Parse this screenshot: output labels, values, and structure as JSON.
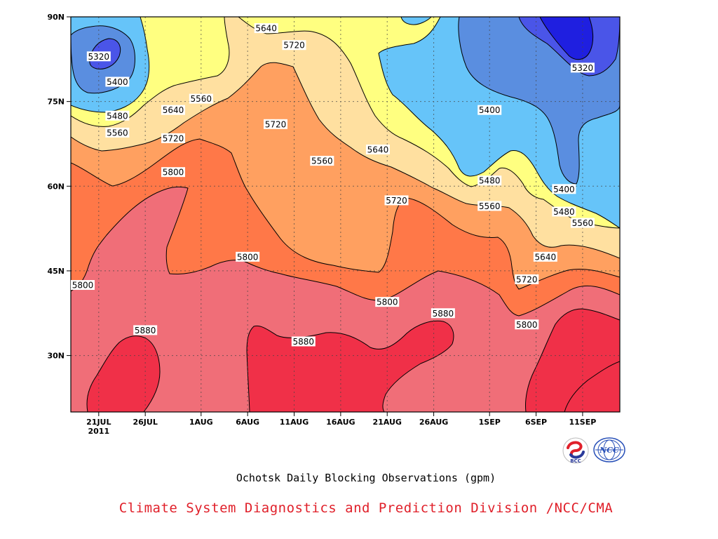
{
  "chart_data": {
    "type": "heatmap",
    "title": "Ochotsk Daily Blocking Observations (gpm)",
    "x_ticks": [
      "21JUL",
      "26JUL",
      "1AUG",
      "6AUG",
      "11AUG",
      "16AUG",
      "21AUG",
      "26AUG",
      "1SEP",
      "6SEP",
      "11SEP"
    ],
    "x_sub_label": "2011",
    "xlim": [
      "2011-07-18",
      "2011-09-15"
    ],
    "y_ticks": [
      "30N",
      "45N",
      "60N",
      "75N",
      "90N"
    ],
    "ylim": [
      20,
      90
    ],
    "contour_levels": [
      5240,
      5320,
      5400,
      5480,
      5560,
      5640,
      5720,
      5800,
      5880
    ],
    "fill_colors": {
      "below_5240": "#1f1fe0",
      "5240_5320": "#4a55e8",
      "5320_5400": "#5a8ee0",
      "5400_5480": "#66c4f9",
      "5480_5560": "#ffff80",
      "5560_5640": "#ffe0a0",
      "5640_5720": "#ffa060",
      "5720_5800": "#ff7848",
      "5800_5880": "#f06e78",
      "above_5880": "#f03048"
    },
    "contour_labels": [
      {
        "text": "5320",
        "date": "2011-07-21",
        "lat": 83
      },
      {
        "text": "5400",
        "date": "2011-07-23",
        "lat": 78.5
      },
      {
        "text": "5480",
        "date": "2011-07-23",
        "lat": 72.5
      },
      {
        "text": "5560",
        "date": "2011-07-23",
        "lat": 69.5
      },
      {
        "text": "5640",
        "date": "2011-07-29",
        "lat": 73.5
      },
      {
        "text": "5560",
        "date": "2011-08-01",
        "lat": 75.5
      },
      {
        "text": "5720",
        "date": "2011-07-29",
        "lat": 68.5
      },
      {
        "text": "5800",
        "date": "2011-07-29",
        "lat": 62.5
      },
      {
        "text": "5640",
        "date": "2011-08-08",
        "lat": 88
      },
      {
        "text": "5720",
        "date": "2011-08-11",
        "lat": 85
      },
      {
        "text": "5720",
        "date": "2011-08-09",
        "lat": 71
      },
      {
        "text": "5560",
        "date": "2011-08-14",
        "lat": 64.5
      },
      {
        "text": "5640",
        "date": "2011-08-20",
        "lat": 66.5
      },
      {
        "text": "5720",
        "date": "2011-08-22",
        "lat": 57.5
      },
      {
        "text": "5800",
        "date": "2011-08-06",
        "lat": 47.5
      },
      {
        "text": "5800",
        "date": "2011-07-19",
        "lat": 42.5
      },
      {
        "text": "5880",
        "date": "2011-07-26",
        "lat": 34.5
      },
      {
        "text": "5880",
        "date": "2011-08-12",
        "lat": 32.5
      },
      {
        "text": "5800",
        "date": "2011-08-21",
        "lat": 39.5
      },
      {
        "text": "5880",
        "date": "2011-08-27",
        "lat": 37.5
      },
      {
        "text": "5400",
        "date": "2011-09-01",
        "lat": 73.5
      },
      {
        "text": "5480",
        "date": "2011-09-01",
        "lat": 61
      },
      {
        "text": "5560",
        "date": "2011-09-01",
        "lat": 56.5
      },
      {
        "text": "5400",
        "date": "2011-09-09",
        "lat": 59.5
      },
      {
        "text": "5480",
        "date": "2011-09-09",
        "lat": 55.5
      },
      {
        "text": "5560",
        "date": "2011-09-11",
        "lat": 53.5
      },
      {
        "text": "5640",
        "date": "2011-09-07",
        "lat": 47.5
      },
      {
        "text": "5720",
        "date": "2011-09-05",
        "lat": 43.5
      },
      {
        "text": "5800",
        "date": "2011-09-05",
        "lat": 35.5
      },
      {
        "text": "5320",
        "date": "2011-09-11",
        "lat": 81
      }
    ],
    "grid": true
  },
  "footer": {
    "credit": "Climate System Diagnostics and Prediction Division /NCC/CMA",
    "logos": [
      "BCC",
      "NCC"
    ]
  },
  "logo_colors": {
    "bcc_red": "#e0202a",
    "bcc_blue": "#2a3a9a",
    "ncc_blue": "#2850b8"
  }
}
